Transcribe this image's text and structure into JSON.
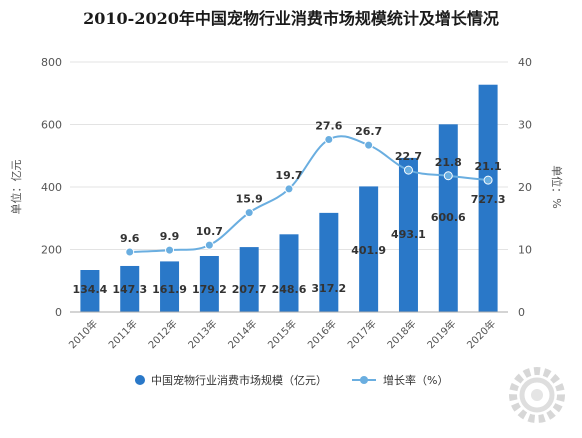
{
  "chart_data": {
    "type": "bar",
    "title": "2010-2020年中国宠物行业消费市场规模统计及增长情况",
    "categories": [
      "2010年",
      "2011年",
      "2012年",
      "2013年",
      "2014年",
      "2015年",
      "2016年",
      "2017年",
      "2018年",
      "2019年",
      "2020年"
    ],
    "series": [
      {
        "name": "中国宠物行业消费市场规模（亿元）",
        "type": "bar",
        "axis": "left",
        "color": "#2a78c8",
        "values": [
          134.4,
          147.3,
          161.9,
          179.2,
          207.7,
          248.6,
          317.2,
          401.9,
          493.1,
          600.6,
          727.3
        ],
        "labels": [
          "134.4",
          "147.3",
          "161.9",
          "179.2",
          "207.7",
          "248.6",
          "317.2",
          "401.9",
          "493.1",
          "600.6",
          "727.3"
        ]
      },
      {
        "name": "增长率（%）",
        "type": "line",
        "axis": "right",
        "color": "#6aaee0",
        "values": [
          null,
          9.6,
          9.9,
          10.7,
          15.9,
          19.7,
          27.6,
          26.7,
          22.7,
          21.8,
          21.1
        ],
        "labels": [
          "",
          "9.6",
          "9.9",
          "10.7",
          "15.9",
          "19.7",
          "27.6",
          "26.7",
          "22.7",
          "21.8",
          "21.1"
        ]
      }
    ],
    "y_left": {
      "label": "单位：亿元",
      "range": [
        0,
        800
      ],
      "ticks": [
        "0",
        "200",
        "400",
        "600",
        "800"
      ]
    },
    "y_right": {
      "label": "单位：%",
      "range": [
        0,
        40
      ],
      "ticks": [
        "0",
        "10",
        "20",
        "30",
        "40"
      ]
    },
    "grid": "horizontal",
    "legend_position": "bottom"
  }
}
